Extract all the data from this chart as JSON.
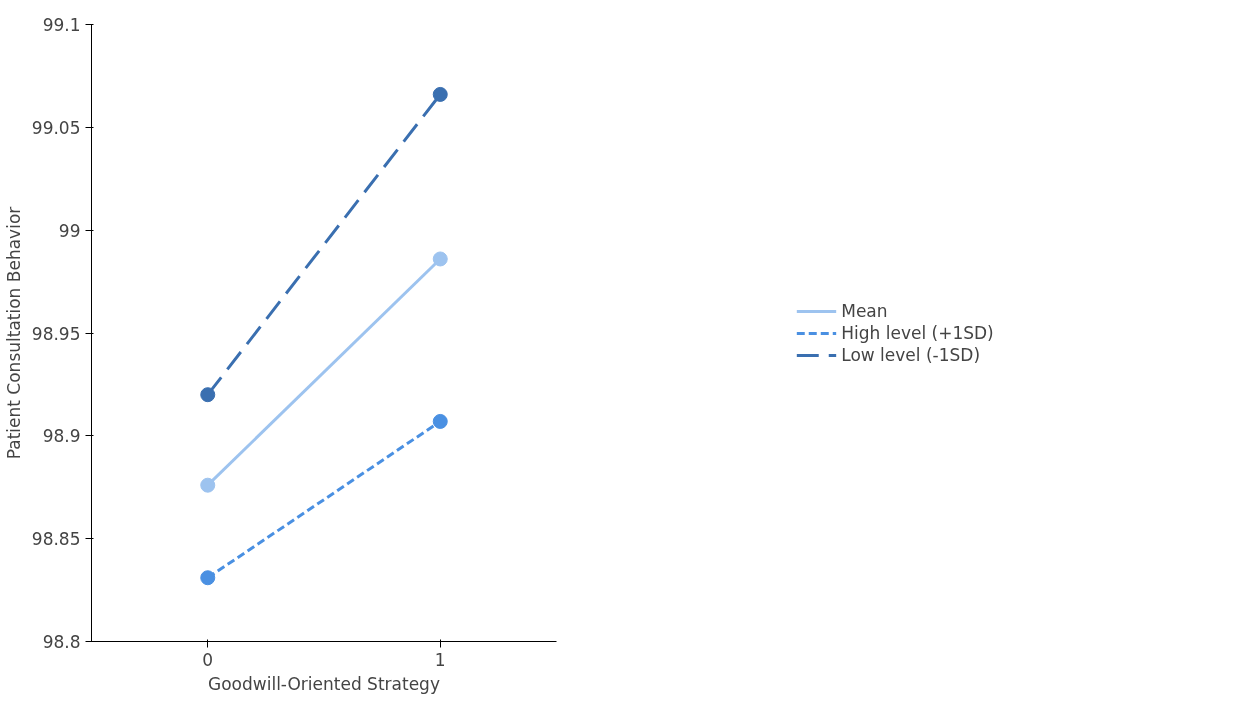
{
  "chart_data": {
    "type": "line",
    "xlabel": "Goodwill-Oriented Strategy",
    "ylabel": "Patient Consultation Behavior",
    "x": [
      0,
      1
    ],
    "xlim": [
      -0.5,
      1.5
    ],
    "xticks": [
      0,
      1
    ],
    "ylim": [
      98.8,
      99.1
    ],
    "yticks": [
      98.8,
      98.85,
      98.9,
      98.95,
      99,
      99.05,
      99.1
    ],
    "series": [
      {
        "name": "Mean",
        "color": "#9dc3ef",
        "values": [
          98.876,
          98.986
        ],
        "line_style": "solid"
      },
      {
        "name": "High level (+1SD)",
        "color": "#4a90e2",
        "values": [
          98.831,
          98.907
        ],
        "line_style": "dashed"
      },
      {
        "name": "Low level (-1SD)",
        "color": "#3a6fb0",
        "values": [
          98.92,
          99.066
        ],
        "line_style": "longdash"
      }
    ],
    "marker": "circle",
    "legend": "right",
    "grid": false
  }
}
